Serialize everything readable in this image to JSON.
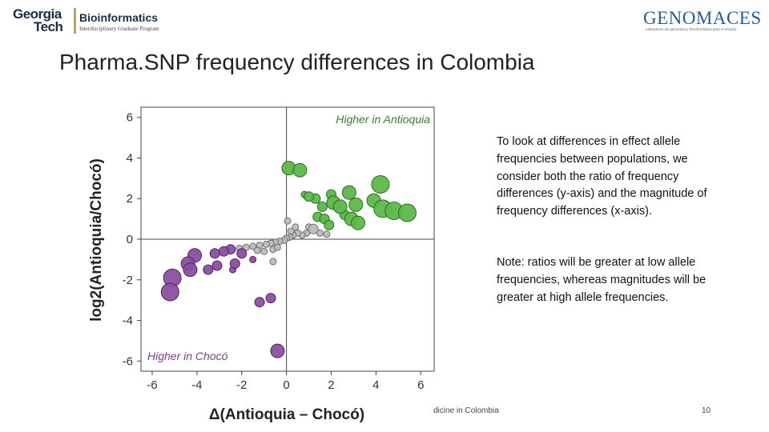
{
  "header": {
    "left_logo": {
      "line1": "Georgia",
      "line2": "Tech",
      "program": "Bioinformatics",
      "subtitle": "Interdisciplinary Graduate Program"
    },
    "right_logo": {
      "wordmark": "GENOMACES",
      "subtitle": "Laboratorio de genómica y bioinformática para el estudio"
    }
  },
  "slide": {
    "title": "Pharma.SNP frequency differences in Colombia",
    "note_1": "To look at differences in effect allele frequencies between populations, we consider both the ratio of frequency differences (y-axis) and the magnitude of frequency differences (x-axis).",
    "note_2": "Note: ratios will be greater at low allele frequencies, whereas magnitudes will be greater at high allele frequencies.",
    "footer": "dicine in Colombia",
    "page_number": "10"
  },
  "chart_data": {
    "type": "scatter",
    "xlabel": "Δ(Antioquia – Chocó)",
    "ylabel": "log2(Antioquia/Chocó)",
    "xlim": [
      -6.5,
      6.6
    ],
    "ylim": [
      -6.5,
      6.5
    ],
    "xticks": [
      "-6",
      "-4",
      "-2",
      "0",
      "2",
      "4",
      "6"
    ],
    "yticks": [
      "6",
      "4",
      "2",
      "0",
      "-2",
      "-4",
      "-6"
    ],
    "grid": false,
    "annotations": {
      "top": "Higher in Antioquia",
      "bottom": "Higher in Chocó"
    },
    "colors": {
      "antioquia": "#5cb84a",
      "choco": "#8b4fa0",
      "neutral": "#bcbcbc",
      "axis": "#444444",
      "annotation": "#3a7d2c"
    },
    "points": [
      {
        "x": 0.1,
        "y": 3.5,
        "size": 3,
        "group": "antioquia"
      },
      {
        "x": 0.6,
        "y": 3.4,
        "size": 3,
        "group": "antioquia"
      },
      {
        "x": 4.2,
        "y": 2.7,
        "size": 4,
        "group": "antioquia"
      },
      {
        "x": 2.8,
        "y": 2.3,
        "size": 3,
        "group": "antioquia"
      },
      {
        "x": 2.0,
        "y": 2.2,
        "size": 2,
        "group": "antioquia"
      },
      {
        "x": 2.1,
        "y": 1.8,
        "size": 3,
        "group": "antioquia"
      },
      {
        "x": 2.4,
        "y": 1.6,
        "size": 3,
        "group": "antioquia"
      },
      {
        "x": 3.1,
        "y": 1.7,
        "size": 3,
        "group": "antioquia"
      },
      {
        "x": 3.9,
        "y": 1.9,
        "size": 3,
        "group": "antioquia"
      },
      {
        "x": 4.3,
        "y": 1.5,
        "size": 4,
        "group": "antioquia"
      },
      {
        "x": 4.8,
        "y": 1.4,
        "size": 4,
        "group": "antioquia"
      },
      {
        "x": 5.4,
        "y": 1.3,
        "size": 4,
        "group": "antioquia"
      },
      {
        "x": 2.6,
        "y": 1.2,
        "size": 2,
        "group": "antioquia"
      },
      {
        "x": 2.9,
        "y": 1.0,
        "size": 3,
        "group": "antioquia"
      },
      {
        "x": 3.2,
        "y": 0.8,
        "size": 3,
        "group": "antioquia"
      },
      {
        "x": 1.3,
        "y": 2.0,
        "size": 2,
        "group": "antioquia"
      },
      {
        "x": 1.0,
        "y": 2.1,
        "size": 2,
        "group": "antioquia"
      },
      {
        "x": 0.8,
        "y": 2.2,
        "size": 1,
        "group": "antioquia"
      },
      {
        "x": 1.6,
        "y": 1.6,
        "size": 2,
        "group": "antioquia"
      },
      {
        "x": 1.4,
        "y": 1.1,
        "size": 2,
        "group": "antioquia"
      },
      {
        "x": 1.7,
        "y": 1.0,
        "size": 2,
        "group": "antioquia"
      },
      {
        "x": 1.9,
        "y": 0.7,
        "size": 2,
        "group": "antioquia"
      },
      {
        "x": 1.2,
        "y": 0.5,
        "size": 2,
        "group": "neutral"
      },
      {
        "x": 1.5,
        "y": 0.3,
        "size": 1,
        "group": "neutral"
      },
      {
        "x": 1.8,
        "y": 0.25,
        "size": 1,
        "group": "neutral"
      },
      {
        "x": 0.9,
        "y": 0.3,
        "size": 1,
        "group": "neutral"
      },
      {
        "x": 1.0,
        "y": 0.6,
        "size": 1,
        "group": "neutral"
      },
      {
        "x": 0.7,
        "y": 0.2,
        "size": 1,
        "group": "neutral"
      },
      {
        "x": 0.5,
        "y": 0.3,
        "size": 1,
        "group": "neutral"
      },
      {
        "x": 0.3,
        "y": 0.2,
        "size": 1,
        "group": "neutral"
      },
      {
        "x": 0.15,
        "y": 0.1,
        "size": 1,
        "group": "neutral"
      },
      {
        "x": 0.0,
        "y": 0.05,
        "size": 1,
        "group": "neutral"
      },
      {
        "x": 0.2,
        "y": 0.4,
        "size": 1,
        "group": "neutral"
      },
      {
        "x": 0.05,
        "y": 0.9,
        "size": 1,
        "group": "neutral"
      },
      {
        "x": 0.4,
        "y": 0.6,
        "size": 1,
        "group": "neutral"
      },
      {
        "x": -0.1,
        "y": -0.05,
        "size": 1,
        "group": "neutral"
      },
      {
        "x": -0.3,
        "y": -0.1,
        "size": 1,
        "group": "neutral"
      },
      {
        "x": -0.5,
        "y": -0.15,
        "size": 1,
        "group": "neutral"
      },
      {
        "x": -0.7,
        "y": -0.2,
        "size": 1,
        "group": "neutral"
      },
      {
        "x": -0.9,
        "y": -0.25,
        "size": 1,
        "group": "neutral"
      },
      {
        "x": -1.2,
        "y": -0.3,
        "size": 1,
        "group": "neutral"
      },
      {
        "x": -1.5,
        "y": -0.35,
        "size": 1,
        "group": "neutral"
      },
      {
        "x": -1.8,
        "y": -0.4,
        "size": 1,
        "group": "neutral"
      },
      {
        "x": -2.1,
        "y": -0.45,
        "size": 1,
        "group": "neutral"
      },
      {
        "x": -0.6,
        "y": -0.5,
        "size": 1,
        "group": "neutral"
      },
      {
        "x": -1.0,
        "y": -0.6,
        "size": 1,
        "group": "neutral"
      },
      {
        "x": -1.3,
        "y": -0.55,
        "size": 1,
        "group": "neutral"
      },
      {
        "x": -0.4,
        "y": -0.4,
        "size": 1,
        "group": "neutral"
      },
      {
        "x": -0.6,
        "y": -1.1,
        "size": 1,
        "group": "neutral"
      },
      {
        "x": -1.5,
        "y": -1.0,
        "size": 1,
        "group": "choco"
      },
      {
        "x": -2.0,
        "y": -0.7,
        "size": 2,
        "group": "choco"
      },
      {
        "x": -2.5,
        "y": -0.5,
        "size": 2,
        "group": "choco"
      },
      {
        "x": -2.3,
        "y": -1.2,
        "size": 2,
        "group": "choco"
      },
      {
        "x": -2.4,
        "y": -1.5,
        "size": 1,
        "group": "choco"
      },
      {
        "x": -2.8,
        "y": -0.6,
        "size": 2,
        "group": "choco"
      },
      {
        "x": -3.2,
        "y": -0.7,
        "size": 2,
        "group": "choco"
      },
      {
        "x": -3.1,
        "y": -1.3,
        "size": 2,
        "group": "choco"
      },
      {
        "x": -3.5,
        "y": -1.5,
        "size": 2,
        "group": "choco"
      },
      {
        "x": -4.1,
        "y": -0.8,
        "size": 3,
        "group": "choco"
      },
      {
        "x": -4.4,
        "y": -1.2,
        "size": 3,
        "group": "choco"
      },
      {
        "x": -4.3,
        "y": -1.5,
        "size": 3,
        "group": "choco"
      },
      {
        "x": -5.1,
        "y": -1.9,
        "size": 4,
        "group": "choco"
      },
      {
        "x": -5.2,
        "y": -2.6,
        "size": 4,
        "group": "choco"
      },
      {
        "x": -1.2,
        "y": -3.1,
        "size": 2,
        "group": "choco"
      },
      {
        "x": -0.7,
        "y": -2.9,
        "size": 2,
        "group": "choco"
      },
      {
        "x": -0.4,
        "y": -5.5,
        "size": 3,
        "group": "choco"
      }
    ]
  }
}
